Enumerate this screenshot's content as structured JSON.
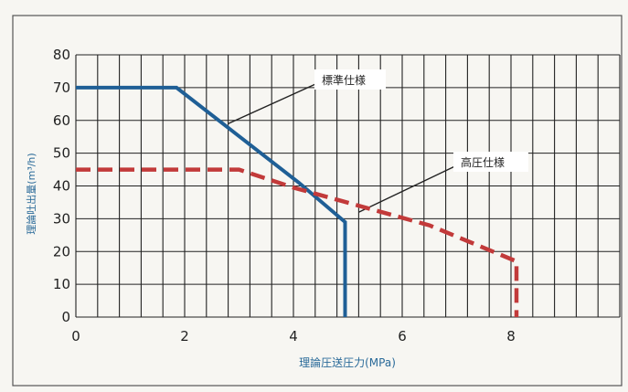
{
  "chart_data": {
    "type": "line",
    "title": "",
    "xlabel": "理論圧送圧力(MPa)",
    "ylabel": "理論吐出量(m³/h)",
    "xlim": [
      0,
      10
    ],
    "ylim": [
      0,
      80
    ],
    "xticks": [
      0,
      2,
      4,
      6,
      8
    ],
    "yticks": [
      0,
      10,
      20,
      30,
      40,
      50,
      60,
      70,
      80
    ],
    "grid": true,
    "series": [
      {
        "name": "標準仕様",
        "color": "#1f5f96",
        "style": "solid",
        "points": [
          [
            0,
            70
          ],
          [
            1.85,
            70
          ],
          [
            4.1,
            41
          ],
          [
            4.95,
            29
          ],
          [
            4.95,
            0
          ]
        ]
      },
      {
        "name": "高圧仕様",
        "color": "#c23a3a",
        "style": "dashed",
        "points": [
          [
            0,
            45
          ],
          [
            3.0,
            45
          ],
          [
            4.0,
            39.5
          ],
          [
            6.5,
            28
          ],
          [
            8.1,
            17
          ],
          [
            8.1,
            0
          ]
        ]
      }
    ],
    "annotations": [
      {
        "text": "標準仕様",
        "series": 0,
        "at": [
          2.8,
          59
        ]
      },
      {
        "text": "高圧仕様",
        "series": 1,
        "at": [
          5.2,
          32
        ]
      }
    ]
  },
  "colors": {
    "background": "#f7f6f2",
    "grid": "#222222",
    "frame": "#555555"
  }
}
